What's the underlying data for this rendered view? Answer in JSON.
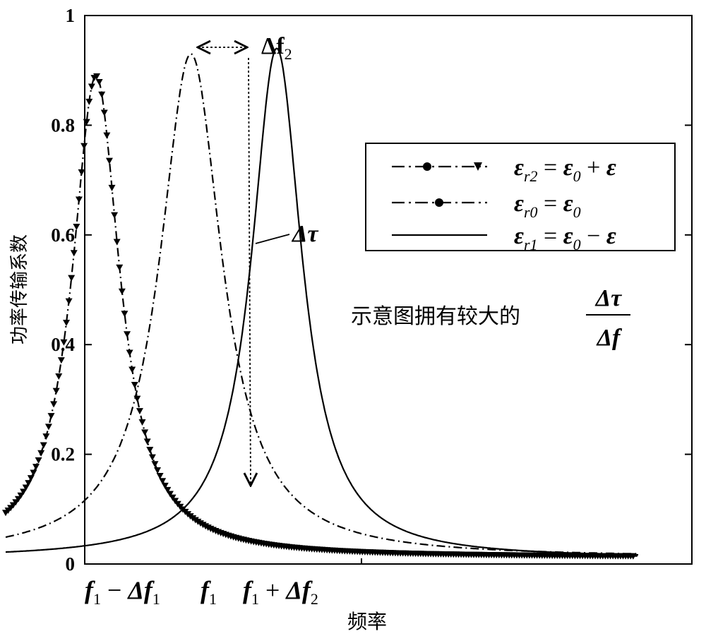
{
  "chart_data": {
    "type": "line",
    "title": "",
    "ylabel": "功率传输系数",
    "xlabel": "频率",
    "ylim": [
      0,
      1
    ],
    "yticks": [
      "0",
      "0.2",
      "0.4",
      "0.6",
      "0.8",
      "1"
    ],
    "xtick_labels": [
      {
        "base": "f",
        "sub": "1",
        "op": "−",
        "delta": "Δf",
        "dsub": "1"
      },
      {
        "base": "f",
        "sub": "1"
      },
      {
        "base": "f",
        "sub": "1",
        "op": "+",
        "delta": "Δf",
        "dsub": "2"
      }
    ],
    "x_categories": [
      "f1 − Δf1",
      "f1",
      "f1 + Δf2"
    ],
    "series": [
      {
        "name": "εr2 = ε0 + ε",
        "style": "dash-dot-triangle",
        "color": "#000000",
        "peak_x": "f1 − Δf1",
        "peak": 0.89,
        "points": [
          [
            -0.2,
            0.07
          ],
          [
            0.5,
            0.2
          ],
          [
            0.85,
            0.45
          ],
          [
            0.95,
            0.65
          ],
          [
            1.0,
            0.89
          ],
          [
            1.05,
            0.65
          ],
          [
            1.15,
            0.45
          ],
          [
            1.5,
            0.2
          ],
          [
            2.0,
            0.1
          ],
          [
            3.0,
            0.04
          ],
          [
            5.0,
            0.02
          ],
          [
            7.0,
            0.015
          ]
        ]
      },
      {
        "name": "εr0 = ε0",
        "style": "dash-dot",
        "color": "#000000",
        "peak_x": "f1",
        "peak": 0.93,
        "points": [
          [
            -0.2,
            0.035
          ],
          [
            1.0,
            0.2
          ],
          [
            1.7,
            0.5
          ],
          [
            1.95,
            0.8
          ],
          [
            2.05,
            0.93
          ],
          [
            2.3,
            0.6
          ],
          [
            2.7,
            0.3
          ],
          [
            3.4,
            0.1
          ],
          [
            4.5,
            0.04
          ],
          [
            7.0,
            0.015
          ]
        ]
      },
      {
        "name": "εr1 = ε0 − ε",
        "style": "solid",
        "color": "#000000",
        "peak_x": "f1 + Δf2",
        "peak": 0.94,
        "points": [
          [
            -0.2,
            0.015
          ],
          [
            1.5,
            0.06
          ],
          [
            2.3,
            0.25
          ],
          [
            2.8,
            0.55
          ],
          [
            3.0,
            0.94
          ],
          [
            3.2,
            0.55
          ],
          [
            3.6,
            0.25
          ],
          [
            4.5,
            0.08
          ],
          [
            6.0,
            0.025
          ],
          [
            7.0,
            0.015
          ]
        ]
      }
    ],
    "annotations": {
      "delta_f2": {
        "text": "Δf",
        "sub": "2"
      },
      "delta_tau": {
        "text": "Δτ"
      },
      "note_text": "示意图拥有较大的",
      "note_fraction": {
        "num": "Δτ",
        "den": "Δf"
      }
    },
    "legend": {
      "placement": "top-right",
      "entries": [
        {
          "lhs": "ε",
          "lsub": "r2",
          "rhs1": "ε",
          "rsub1": "0",
          "op": "+",
          "rhs2": "ε"
        },
        {
          "lhs": "ε",
          "lsub": "r0",
          "rhs1": "ε",
          "rsub1": "0"
        },
        {
          "lhs": "ε",
          "lsub": "r1",
          "rhs1": "ε",
          "rsub1": "0",
          "op": "−",
          "rhs2": "ε"
        }
      ]
    },
    "grid": false
  }
}
